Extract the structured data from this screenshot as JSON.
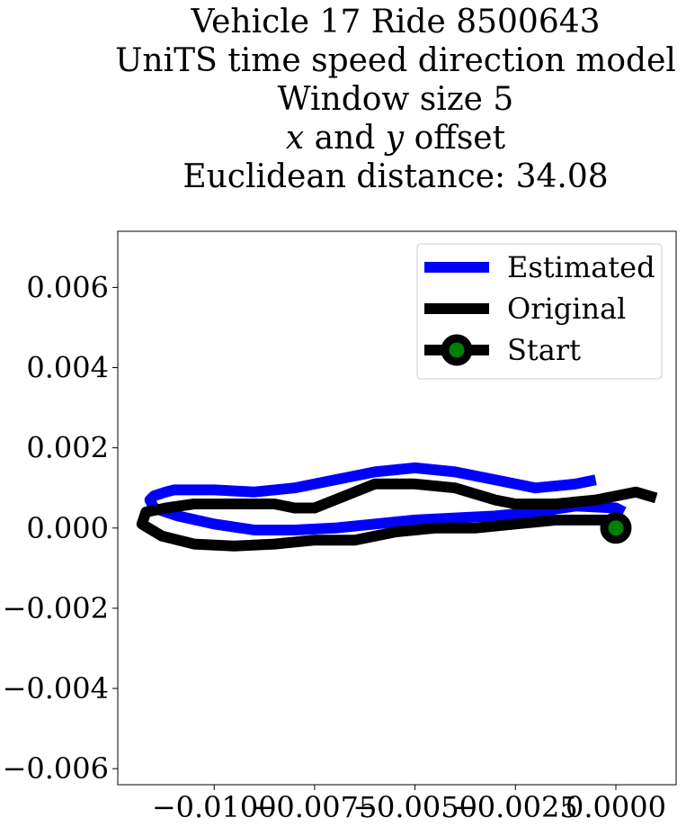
{
  "chart_data": {
    "type": "line",
    "title_lines": [
      "Vehicle 17 Ride 8500643",
      "UniTS time speed direction model",
      "Window size 5",
      "x and y offset",
      "Euclidean distance: 34.08"
    ],
    "title_line4_parts": {
      "x": "x",
      "and": " and ",
      "y": "y",
      "offset": " offset"
    },
    "xlabel": "",
    "ylabel": "",
    "xlim": [
      -0.0124,
      0.0015
    ],
    "ylim": [
      -0.0064,
      0.0074
    ],
    "xticks": [
      -0.01,
      -0.0075,
      -0.005,
      -0.0025,
      0.0
    ],
    "xtick_labels": [
      "−0.0100",
      "−0.0075",
      "−0.0050",
      "−0.0025",
      "0.0000"
    ],
    "yticks": [
      -0.006,
      -0.004,
      -0.002,
      0.0,
      0.002,
      0.004,
      0.006
    ],
    "ytick_labels": [
      "−0.006",
      "−0.004",
      "−0.002",
      "0.000",
      "0.002",
      "0.004",
      "0.006"
    ],
    "grid": false,
    "legend_placement": "top-right",
    "series": [
      {
        "name": "Estimated",
        "color": "#0000ff",
        "x": [
          0.0002,
          0.0,
          -0.001,
          -0.002,
          -0.003,
          -0.004,
          -0.005,
          -0.006,
          -0.007,
          -0.008,
          -0.009,
          -0.01,
          -0.0109,
          -0.0115,
          -0.0116,
          -0.0115,
          -0.0112,
          -0.011,
          -0.0105,
          -0.01,
          -0.009,
          -0.008,
          -0.007,
          -0.006,
          -0.005,
          -0.004,
          -0.003,
          -0.002,
          -0.001,
          -0.0005
        ],
        "y": [
          0.0004,
          0.0005,
          0.00055,
          0.0004,
          0.0003,
          0.00025,
          0.0002,
          0.0001,
          0.0,
          -5e-05,
          -5e-05,
          0.0001,
          0.0003,
          0.0005,
          0.0007,
          0.0008,
          0.0009,
          0.00095,
          0.00095,
          0.00095,
          0.0009,
          0.001,
          0.0012,
          0.0014,
          0.0015,
          0.0014,
          0.0012,
          0.001,
          0.0011,
          0.0012
        ]
      },
      {
        "name": "Original",
        "color": "#000000",
        "x": [
          0.0,
          -0.0005,
          -0.0015,
          -0.0025,
          -0.0035,
          -0.0045,
          -0.0055,
          -0.0065,
          -0.0075,
          -0.0085,
          -0.0095,
          -0.0105,
          -0.0113,
          -0.0118,
          -0.0117,
          -0.0112,
          -0.0105,
          -0.0095,
          -0.0085,
          -0.008,
          -0.0075,
          -0.007,
          -0.0065,
          -0.006,
          -0.005,
          -0.004,
          -0.003,
          -0.0025,
          -0.0015,
          -0.0005,
          0.0005,
          0.001
        ],
        "y": [
          0.0002,
          0.0002,
          0.0002,
          0.0001,
          0.0,
          0.0,
          -0.0001,
          -0.0003,
          -0.0003,
          -0.0004,
          -0.00045,
          -0.0004,
          -0.0002,
          0.0001,
          0.0004,
          0.0005,
          0.0006,
          0.0006,
          0.0006,
          0.0005,
          0.0005,
          0.0007,
          0.0009,
          0.0011,
          0.0011,
          0.001,
          0.0007,
          0.0006,
          0.0006,
          0.0007,
          0.0009,
          0.00075
        ]
      },
      {
        "name": "Start",
        "color": "#000000",
        "marker_face_color": "#008000",
        "x": [
          0.0
        ],
        "y": [
          0.0
        ]
      }
    ]
  }
}
